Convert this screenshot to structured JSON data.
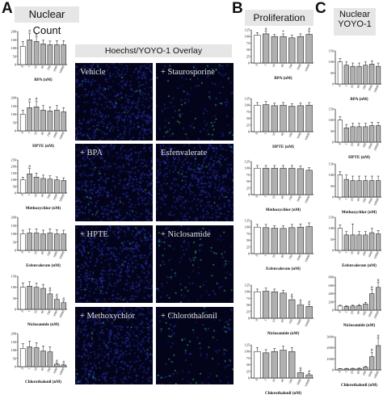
{
  "panels": {
    "A": {
      "letter": "A",
      "header": "Nuclear Count"
    },
    "B": {
      "letter": "B",
      "header": "Proliferation"
    },
    "C": {
      "letter": "C",
      "header_line1": "Nuclear",
      "header_line2": "YOYO-1"
    }
  },
  "overlay_header": "Hoechst/YOYO-1 Overlay",
  "micrographs": [
    {
      "label": "Vehicle"
    },
    {
      "label": "+ Staurosporine"
    },
    {
      "label": "+ BPA"
    },
    {
      "label": "Esfenvalerate"
    },
    {
      "label": "+ HPTE"
    },
    {
      "label": "+ Niclosamide"
    },
    {
      "label": "+ Methoxychlor"
    },
    {
      "label": "+ Chlorothalonil"
    }
  ],
  "chart_data": [
    {
      "type": "bar",
      "panel": "A",
      "xlabel": "BPA (nM)",
      "ylim": [
        0,
        200
      ],
      "yticks": [
        0,
        50,
        100,
        150,
        200
      ],
      "categories": [
        "0",
        "1",
        "10",
        "40",
        "100",
        "1000",
        "10000"
      ],
      "values": [
        110,
        150,
        140,
        125,
        120,
        120,
        120
      ],
      "errors": [
        30,
        40,
        28,
        22,
        22,
        25,
        25
      ],
      "first_bar_white": true,
      "marks": [
        "",
        "#",
        "#",
        "",
        "",
        "",
        ""
      ]
    },
    {
      "type": "bar",
      "panel": "A",
      "xlabel": "HPTE (nM)",
      "ylim": [
        0,
        200
      ],
      "yticks": [
        0,
        50,
        100,
        150,
        200
      ],
      "categories": [
        "0",
        "1",
        "10",
        "40",
        "100",
        "1000",
        "10000"
      ],
      "values": [
        100,
        140,
        145,
        125,
        120,
        125,
        115
      ],
      "errors": [
        25,
        35,
        35,
        28,
        25,
        28,
        25
      ],
      "first_bar_white": true,
      "marks": [
        "",
        "#",
        "#",
        "",
        "",
        "",
        ""
      ]
    },
    {
      "type": "bar",
      "panel": "A",
      "xlabel": "Methoxychlor (nM)",
      "ylim": [
        0,
        250
      ],
      "yticks": [
        0,
        50,
        100,
        150,
        200,
        250
      ],
      "categories": [
        "0",
        "1",
        "10",
        "40",
        "100",
        "1000",
        "10000"
      ],
      "values": [
        100,
        145,
        120,
        110,
        105,
        100,
        95
      ],
      "errors": [
        20,
        40,
        30,
        25,
        25,
        22,
        20
      ],
      "first_bar_white": true,
      "marks": [
        "",
        "#",
        "",
        "",
        "",
        "",
        ""
      ]
    },
    {
      "type": "bar",
      "panel": "A",
      "xlabel": "Esfenvalerate (nM)",
      "ylim": [
        0,
        200
      ],
      "yticks": [
        0,
        50,
        100,
        150,
        200
      ],
      "categories": [
        "0",
        "1",
        "10",
        "40",
        "100",
        "1000",
        "10000"
      ],
      "values": [
        100,
        105,
        105,
        100,
        105,
        100,
        100
      ],
      "errors": [
        22,
        25,
        25,
        22,
        25,
        25,
        22
      ],
      "first_bar_white": true,
      "marks": [
        "",
        "",
        "",
        "",
        "",
        "",
        ""
      ]
    },
    {
      "type": "bar",
      "panel": "A",
      "xlabel": "Niclosamide (nM)",
      "ylim": [
        0,
        150
      ],
      "yticks": [
        0,
        50,
        100,
        150
      ],
      "categories": [
        "0",
        "1",
        "10",
        "40",
        "100",
        "1000",
        "10000"
      ],
      "values": [
        100,
        105,
        100,
        95,
        70,
        45,
        30
      ],
      "errors": [
        20,
        20,
        18,
        18,
        15,
        10,
        8
      ],
      "first_bar_white": true,
      "marks": [
        "",
        "",
        "",
        "",
        "#",
        "#",
        "#"
      ]
    },
    {
      "type": "bar",
      "panel": "A",
      "xlabel": "Chlorothalonil (nM)",
      "ylim": [
        0,
        200
      ],
      "yticks": [
        0,
        50,
        100,
        150,
        200
      ],
      "categories": [
        "0",
        "1",
        "10",
        "40",
        "100",
        "1000",
        "10000"
      ],
      "values": [
        110,
        120,
        115,
        95,
        90,
        15,
        10
      ],
      "errors": [
        30,
        35,
        30,
        30,
        30,
        8,
        5
      ],
      "first_bar_white": true,
      "marks": [
        "",
        "",
        "",
        "",
        "",
        "#",
        "#"
      ]
    },
    {
      "type": "bar",
      "panel": "B",
      "xlabel": "BPA (nM)",
      "ylim": [
        0,
        125
      ],
      "yticks": [
        0,
        25,
        50,
        75,
        100,
        125
      ],
      "categories": [
        "0",
        "1",
        "10",
        "40",
        "100",
        "1000",
        "10000"
      ],
      "values": [
        105,
        110,
        100,
        100,
        95,
        100,
        108
      ],
      "errors": [
        10,
        10,
        8,
        10,
        10,
        10,
        12
      ],
      "first_bar_white": true,
      "marks": [
        "",
        "#",
        "",
        "*",
        "",
        "",
        "#"
      ]
    },
    {
      "type": "bar",
      "panel": "B",
      "xlabel": "HPTE (nM)",
      "ylim": [
        0,
        125
      ],
      "yticks": [
        0,
        25,
        50,
        75,
        100,
        125
      ],
      "categories": [
        "0",
        "1",
        "10",
        "40",
        "100",
        "1000",
        "10000"
      ],
      "values": [
        100,
        102,
        98,
        100,
        96,
        98,
        100
      ],
      "errors": [
        10,
        12,
        10,
        10,
        10,
        10,
        10
      ],
      "first_bar_white": true,
      "marks": [
        "",
        "",
        "",
        "",
        "",
        "",
        ""
      ]
    },
    {
      "type": "bar",
      "panel": "B",
      "xlabel": "Methoxychlor (nM)",
      "ylim": [
        0,
        125
      ],
      "yticks": [
        0,
        25,
        50,
        75,
        100,
        125
      ],
      "categories": [
        "0",
        "1",
        "10",
        "40",
        "100",
        "1000",
        "10000"
      ],
      "values": [
        100,
        100,
        100,
        100,
        100,
        98,
        92
      ],
      "errors": [
        10,
        10,
        10,
        10,
        10,
        10,
        10
      ],
      "first_bar_white": true,
      "marks": [
        "",
        "",
        "",
        "",
        "",
        "",
        ""
      ]
    },
    {
      "type": "bar",
      "panel": "B",
      "xlabel": "Esfenvalerate (nM)",
      "ylim": [
        0,
        125
      ],
      "yticks": [
        0,
        25,
        50,
        75,
        100,
        125
      ],
      "categories": [
        "0",
        "1",
        "10",
        "40",
        "100",
        "1000",
        "10000"
      ],
      "values": [
        100,
        98,
        96,
        95,
        98,
        100,
        102
      ],
      "errors": [
        10,
        12,
        10,
        10,
        12,
        12,
        14
      ],
      "first_bar_white": true,
      "marks": [
        "",
        "",
        "",
        "",
        "",
        "",
        ""
      ]
    },
    {
      "type": "bar",
      "panel": "B",
      "xlabel": "Niclosamide (nM)",
      "ylim": [
        0,
        125
      ],
      "yticks": [
        0,
        25,
        50,
        75,
        100,
        125
      ],
      "categories": [
        "0",
        "1",
        "10",
        "40",
        "100",
        "1000",
        "10000"
      ],
      "values": [
        100,
        102,
        100,
        95,
        70,
        50,
        45
      ],
      "errors": [
        10,
        12,
        10,
        10,
        10,
        8,
        8
      ],
      "first_bar_white": true,
      "marks": [
        "",
        "",
        "",
        "",
        "#",
        "#",
        "#"
      ]
    },
    {
      "type": "bar",
      "panel": "B",
      "xlabel": "Chlorothalonil (nM)",
      "ylim": [
        0,
        125
      ],
      "yticks": [
        0,
        25,
        50,
        75,
        100,
        125
      ],
      "categories": [
        "0",
        "1",
        "10",
        "40",
        "100",
        "1000",
        "10000"
      ],
      "values": [
        100,
        95,
        100,
        105,
        100,
        20,
        12
      ],
      "errors": [
        15,
        12,
        12,
        15,
        15,
        8,
        5
      ],
      "first_bar_white": true,
      "marks": [
        "",
        "",
        "",
        "",
        "",
        "#",
        "#"
      ]
    },
    {
      "type": "bar",
      "panel": "C",
      "xlabel": "BPA (nM)",
      "ylim": [
        0,
        150
      ],
      "yticks": [
        0,
        50,
        100,
        150
      ],
      "categories": [
        "0",
        "1",
        "10",
        "40",
        "100",
        "1000",
        "10000"
      ],
      "values": [
        100,
        85,
        80,
        80,
        85,
        90,
        80
      ],
      "errors": [
        15,
        15,
        15,
        15,
        15,
        15,
        15
      ],
      "first_bar_white": true,
      "marks": [
        "",
        "",
        "",
        "",
        "",
        "",
        ""
      ]
    },
    {
      "type": "bar",
      "panel": "C",
      "xlabel": "HPTE (nM)",
      "ylim": [
        0,
        150
      ],
      "yticks": [
        0,
        50,
        100,
        150
      ],
      "categories": [
        "0",
        "1",
        "10",
        "40",
        "100",
        "1000",
        "10000"
      ],
      "values": [
        100,
        65,
        70,
        70,
        70,
        75,
        75
      ],
      "errors": [
        15,
        15,
        15,
        15,
        15,
        15,
        15
      ],
      "first_bar_white": true,
      "marks": [
        "",
        "",
        "",
        "",
        "",
        "",
        ""
      ]
    },
    {
      "type": "bar",
      "panel": "C",
      "xlabel": "Methoxychlor (nM)",
      "ylim": [
        0,
        150
      ],
      "yticks": [
        0,
        50,
        100,
        150
      ],
      "categories": [
        "0",
        "1",
        "10",
        "40",
        "100",
        "1000",
        "10000"
      ],
      "values": [
        100,
        80,
        75,
        75,
        75,
        75,
        75
      ],
      "errors": [
        15,
        20,
        20,
        20,
        20,
        20,
        20
      ],
      "first_bar_white": true,
      "marks": [
        "",
        "",
        "",
        "",
        "",
        "",
        ""
      ]
    },
    {
      "type": "bar",
      "panel": "C",
      "xlabel": "Esfenvalerate (nM)",
      "ylim": [
        0,
        150
      ],
      "yticks": [
        0,
        50,
        100,
        150
      ],
      "categories": [
        "0",
        "1",
        "10",
        "40",
        "100",
        "1000",
        "10000"
      ],
      "values": [
        100,
        70,
        70,
        70,
        70,
        80,
        75
      ],
      "errors": [
        15,
        15,
        50,
        15,
        15,
        20,
        15
      ],
      "first_bar_white": true,
      "marks": [
        "",
        "",
        "",
        "",
        "",
        "",
        ""
      ]
    },
    {
      "type": "bar",
      "panel": "C",
      "xlabel": "Niclosamide (nM)",
      "ylim": [
        0,
        800
      ],
      "yticks": [
        0,
        200,
        400,
        600,
        800
      ],
      "categories": [
        "0",
        "1",
        "10",
        "40",
        "100",
        "1000",
        "10000"
      ],
      "values": [
        100,
        90,
        100,
        110,
        150,
        400,
        550
      ],
      "errors": [
        20,
        20,
        20,
        25,
        40,
        100,
        120
      ],
      "first_bar_white": true,
      "marks": [
        "",
        "",
        "",
        "",
        "",
        "#",
        "#"
      ]
    },
    {
      "type": "bar",
      "panel": "C",
      "xlabel": "Chlorothalonil (nM)",
      "ylim": [
        0,
        3000
      ],
      "yticks": [
        0,
        1000,
        2000,
        3000
      ],
      "categories": [
        "0",
        "1",
        "10",
        "40",
        "100",
        "1000",
        "10000"
      ],
      "values": [
        100,
        110,
        120,
        130,
        250,
        1200,
        2200
      ],
      "errors": [
        30,
        30,
        30,
        40,
        60,
        400,
        700
      ],
      "first_bar_white": true,
      "marks": [
        "",
        "",
        "",
        "",
        "",
        "#",
        "#"
      ]
    }
  ]
}
